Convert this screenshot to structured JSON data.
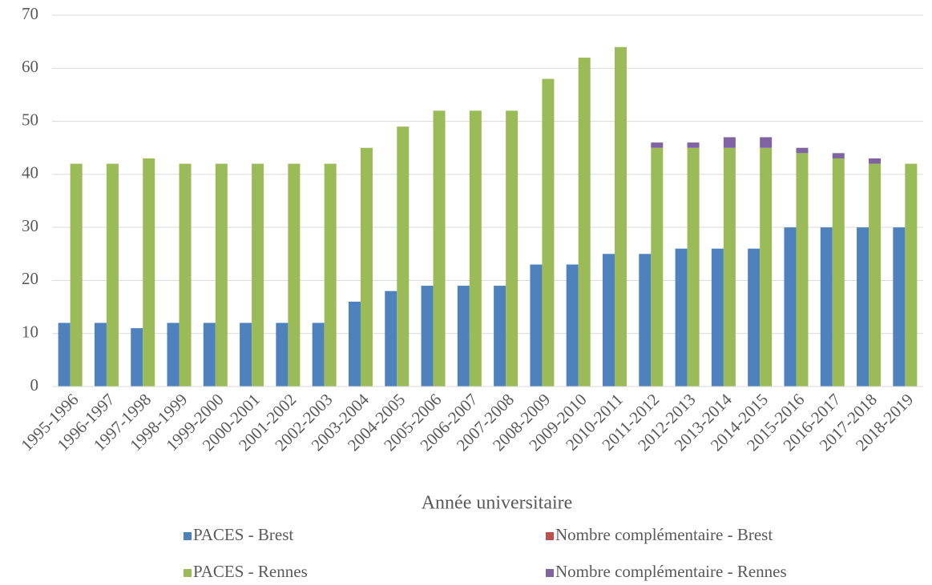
{
  "chart_data": {
    "type": "bar",
    "x_label": "Année universitaire",
    "categories": [
      "1995-1996",
      "1996-1997",
      "1997-1998",
      "1998-1999",
      "1999-2000",
      "2000-2001",
      "2001-2002",
      "2002-2003",
      "2003-2004",
      "2004-2005",
      "2005-2006",
      "2006-2007",
      "2007-2008",
      "2008-2009",
      "2009-2010",
      "2010-2011",
      "2011-2012",
      "2012-2013",
      "2013-2014",
      "2014-2015",
      "2015-2016",
      "2016-2017",
      "2017-2018",
      "2018-2019"
    ],
    "series": [
      {
        "name": "PACES - Brest",
        "color": "#4f81bd",
        "values": [
          12,
          12,
          11,
          12,
          12,
          12,
          12,
          12,
          16,
          18,
          19,
          19,
          19,
          23,
          23,
          25,
          25,
          26,
          26,
          26,
          30,
          30,
          30,
          30
        ]
      },
      {
        "name": "Nombre complémentaire - Brest",
        "color": "#c0504d",
        "values": [
          0,
          0,
          0,
          0,
          0,
          0,
          0,
          0,
          0,
          0,
          0,
          0,
          0,
          0,
          0,
          0,
          0,
          0,
          0,
          0,
          0,
          0,
          0,
          0
        ]
      },
      {
        "name": "PACES - Rennes",
        "color": "#9bbb59",
        "values": [
          42,
          42,
          43,
          42,
          42,
          42,
          42,
          42,
          45,
          49,
          52,
          52,
          52,
          58,
          62,
          64,
          45,
          45,
          45,
          45,
          44,
          43,
          42,
          42
        ]
      },
      {
        "name": "Nombre complémentaire - Rennes",
        "color": "#8064a2",
        "values": [
          0,
          0,
          0,
          0,
          0,
          0,
          0,
          0,
          0,
          0,
          0,
          0,
          0,
          0,
          0,
          0,
          1,
          1,
          2,
          2,
          1,
          1,
          1,
          0
        ]
      }
    ],
    "ylim": [
      0,
      70
    ],
    "yticks": [
      0,
      10,
      20,
      30,
      40,
      50,
      60,
      70
    ],
    "grid": true
  }
}
